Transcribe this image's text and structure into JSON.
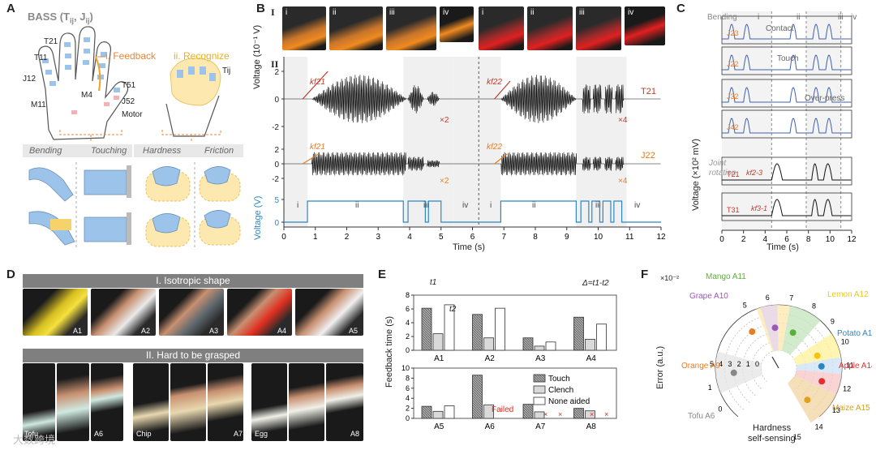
{
  "panels": {
    "a": "A",
    "b": "B",
    "c": "C",
    "d": "D",
    "e": "E",
    "f": "F"
  },
  "panelA": {
    "title": "BASS (T",
    "title_sub1": "ij",
    "title_mid": ", J",
    "title_sub2": "ij",
    "title_end": ")",
    "feedback": "i. Feedback",
    "recognize": "ii. Recognize",
    "labels": {
      "t21": "T21",
      "t11": "T11",
      "j12": "J12",
      "t51": "T51",
      "m4": "M4",
      "m11": "M11",
      "j52": "J52",
      "motor": "Motor",
      "tij": "Tij"
    },
    "categories": [
      "Bending",
      "Touching",
      "Hardness",
      "Friction"
    ]
  },
  "panelB": {
    "row1": "I",
    "row2": "II",
    "photo_labels": [
      "i",
      "ii",
      "iii",
      "iv",
      "i",
      "ii",
      "iii",
      "iv"
    ],
    "ylabel_top": "Voltage (10⁻¹ V)",
    "ylabel_bottom": "Voltage (V)",
    "xlabel": "Time (s)",
    "trace1": "T21",
    "trace2": "J22",
    "k1": "kf21",
    "k2": "kf22",
    "mult2": "×2",
    "mult4": "×4",
    "yticks_top": [
      "2",
      "0",
      "-2"
    ],
    "yticks_mid": [
      "2",
      "0",
      "-2"
    ],
    "yticks_bot": [
      "5",
      "0"
    ],
    "xticks": [
      "0",
      "1",
      "2",
      "3",
      "4",
      "5",
      "6",
      "7",
      "8",
      "9",
      "10",
      "11",
      "12"
    ],
    "stages": [
      "i",
      "ii",
      "iii",
      "iv",
      "i",
      "ii",
      "iii",
      "iv"
    ]
  },
  "panelC": {
    "bending": "Bending",
    "stages": [
      "i",
      "ii",
      "iii",
      "iv"
    ],
    "rows": [
      "J23",
      "J22",
      "J32",
      "J42",
      "T21",
      "T31"
    ],
    "contact": "Contact",
    "touch": "Touch",
    "overpress": "Over-press",
    "joint": "Joint",
    "rotation": "rotation",
    "ylabel": "Voltage (×10² mV)",
    "xlabel": "Time (s)",
    "k3": "kf2-3",
    "k1": "kf3-1",
    "xticks": [
      "0",
      "2",
      "4",
      "6",
      "8",
      "10",
      "12"
    ]
  },
  "panelD": {
    "band1": "I. Isotropic shape",
    "band2": "II. Hard to be grasped",
    "row1_labels": [
      "A1",
      "A2",
      "A3",
      "A4",
      "A5"
    ],
    "row2_labels": [
      "Tofu",
      "A6",
      "Chip",
      "A7",
      "Egg",
      "A8"
    ]
  },
  "panelE": {
    "ylabel": "Feedback time (s)",
    "delta": "Δ=t1-t2",
    "t1": "t1",
    "t2": "t2",
    "legend": [
      "Touch",
      "Clench",
      "None aided"
    ],
    "failed": "Failed",
    "top": {
      "categories": [
        "A1",
        "A2",
        "A3",
        "A4"
      ],
      "series": [
        {
          "name": "Touch",
          "values": [
            6.1,
            5.2,
            1.8,
            4.8
          ]
        },
        {
          "name": "Clench",
          "values": [
            2.4,
            1.8,
            0.6,
            1.6
          ]
        },
        {
          "name": "None aided",
          "values": [
            6.6,
            6.1,
            1.2,
            3.8
          ]
        }
      ],
      "ylim": [
        0,
        8
      ],
      "yticks": [
        "0",
        "2",
        "4",
        "6",
        "8"
      ]
    },
    "bottom": {
      "categories": [
        "A5",
        "A6",
        "A7",
        "A8"
      ],
      "series": [
        {
          "name": "Touch",
          "values": [
            2.4,
            8.6,
            2.8,
            2.0
          ]
        },
        {
          "name": "Clench",
          "values": [
            1.4,
            2.7,
            1.3,
            1.5
          ]
        },
        {
          "name": "None aided",
          "values": [
            2.5,
            0,
            0,
            0
          ]
        }
      ],
      "ylim": [
        0,
        10
      ],
      "yticks": [
        "0",
        "2",
        "4",
        "6",
        "8",
        "10"
      ]
    }
  },
  "panelF": {
    "ylabel": "Error (a.u.)",
    "scale": "×10⁻²",
    "rticks": [
      "0",
      "1",
      "2",
      "3",
      "4",
      "5"
    ],
    "theta_ticks": [
      "0",
      "1",
      "5",
      "6",
      "7",
      "8",
      "9",
      "10",
      "11",
      "12",
      "13",
      "14",
      "15"
    ],
    "foods": [
      "Mango A11",
      "Grape A10",
      "Lemon A12",
      "Potato A13",
      "Orange A9",
      "Apple A14",
      "Maize A15",
      "Tofu A6"
    ],
    "caption1": "Hardness",
    "caption2": "self-sensing"
  },
  "watermark": "大数跨境"
}
